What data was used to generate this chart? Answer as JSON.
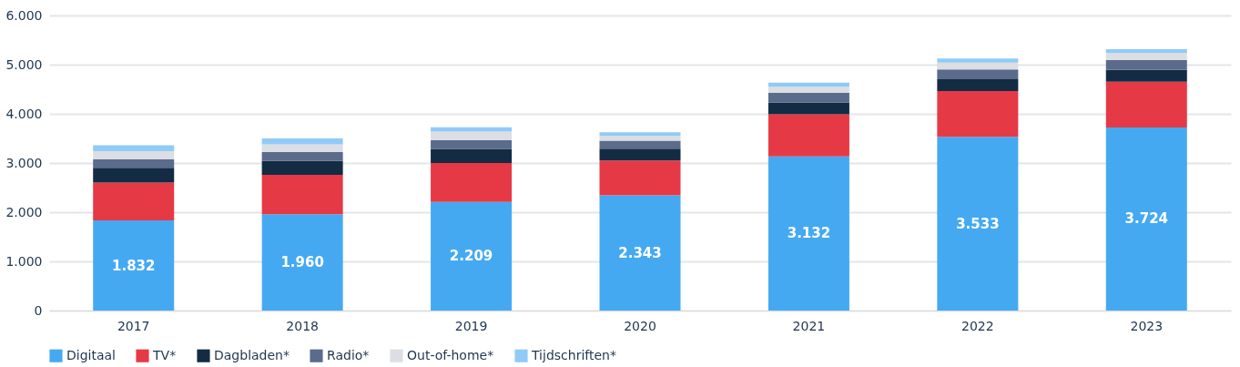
{
  "chart_data": {
    "type": "bar",
    "stacked": true,
    "categories": [
      "2017",
      "2018",
      "2019",
      "2020",
      "2021",
      "2022",
      "2023"
    ],
    "series": [
      {
        "name": "Digitaal",
        "color": "#45a9f2",
        "values": [
          1832,
          1960,
          2209,
          2343,
          3132,
          3533,
          3724
        ],
        "value_labels": [
          "1.832",
          "1.960",
          "2.209",
          "2.343",
          "3.132",
          "3.533",
          "3.724"
        ]
      },
      {
        "name": "TV*",
        "color": "#e63946",
        "values": [
          770,
          800,
          790,
          710,
          860,
          930,
          930
        ]
      },
      {
        "name": "Dagbladen*",
        "color": "#132c44",
        "values": [
          300,
          280,
          290,
          240,
          240,
          240,
          240
        ]
      },
      {
        "name": "Radio*",
        "color": "#5b6b8c",
        "values": [
          170,
          180,
          180,
          160,
          200,
          200,
          200
        ]
      },
      {
        "name": "Out-of-home*",
        "color": "#dcdee3",
        "values": [
          170,
          160,
          170,
          100,
          120,
          140,
          140
        ]
      },
      {
        "name": "Tijdschriften*",
        "color": "#90cbf7",
        "values": [
          120,
          120,
          90,
          70,
          80,
          80,
          80
        ]
      }
    ],
    "ylim": [
      0,
      6000
    ],
    "yticks": [
      {
        "value": 0,
        "label": "0"
      },
      {
        "value": 1000,
        "label": "1.000"
      },
      {
        "value": 2000,
        "label": "2.000"
      },
      {
        "value": 3000,
        "label": "3.000"
      },
      {
        "value": 4000,
        "label": "4.000"
      },
      {
        "value": 5000,
        "label": "5.000"
      },
      {
        "value": 6000,
        "label": "6.000"
      }
    ],
    "grid": "y",
    "legend": "bottom left"
  }
}
